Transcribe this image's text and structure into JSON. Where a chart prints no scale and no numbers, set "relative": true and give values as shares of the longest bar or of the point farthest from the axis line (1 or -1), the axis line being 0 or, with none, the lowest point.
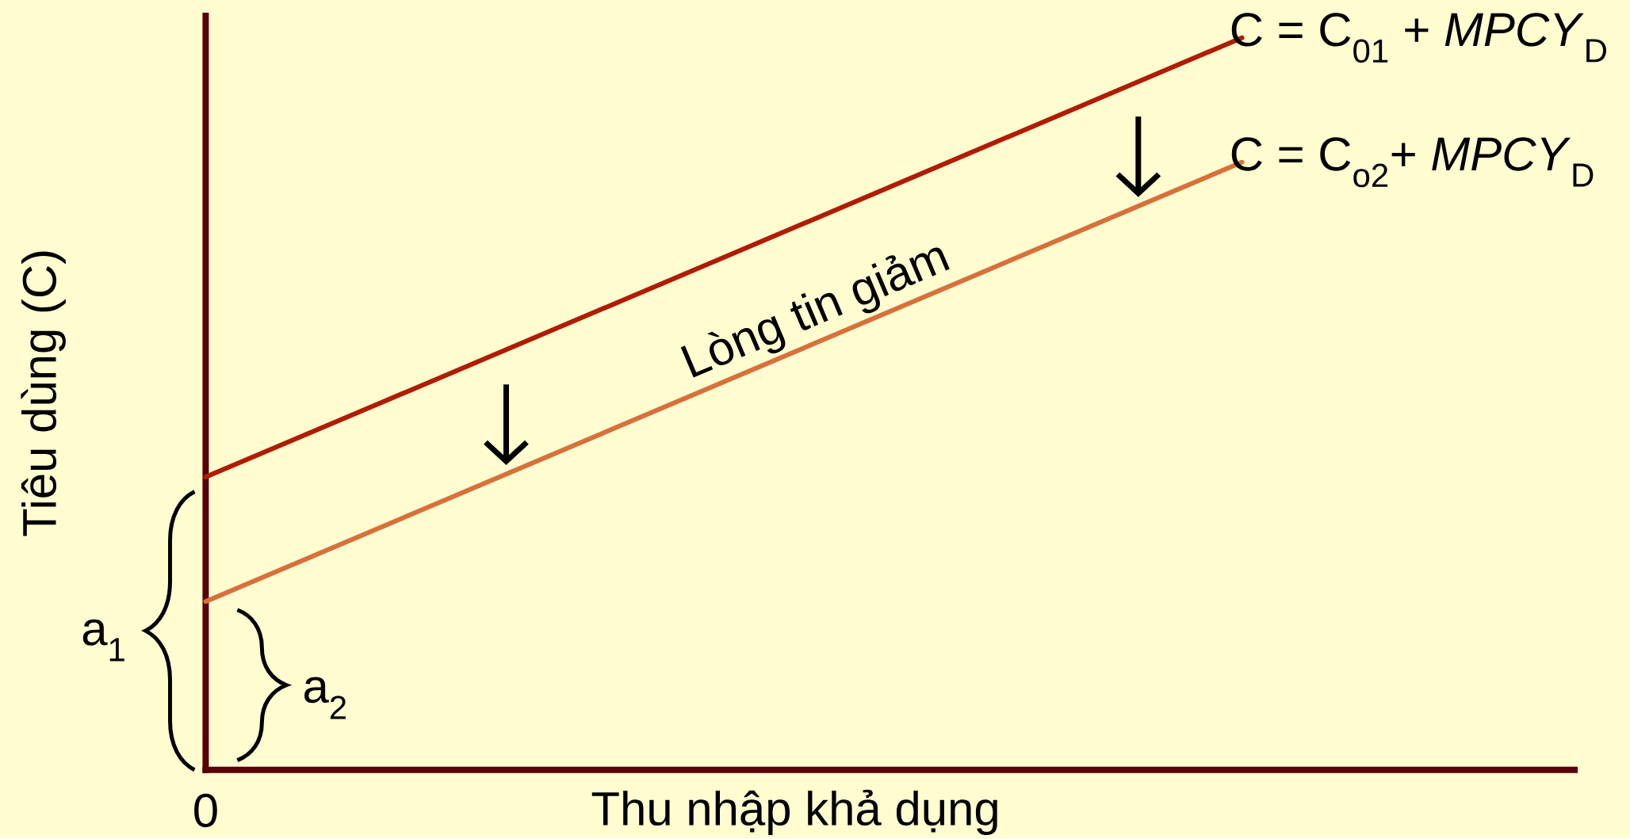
{
  "chart_data": {
    "type": "line",
    "xlabel": "Thu nhập khả dụng",
    "ylabel": "Tiêu dùng (C)",
    "relative": true,
    "categories": [
      null,
      null
    ],
    "series": [
      {
        "name": "C = C$_{01}$ + *MPCY*$_{D}$",
        "color": "#b01c00",
        "values": [
          0.4,
          1
        ]
      },
      {
        "name": "C = C$_{o2}$+ *MPCY*$_{D}$",
        "color": "#d8703c",
        "values": [
          0.23,
          0.83
        ]
      }
    ],
    "annotations": [
      "Lòng tin giảm",
      "a$_{1}$",
      "a$_{2}$",
      "0"
    ]
  }
}
